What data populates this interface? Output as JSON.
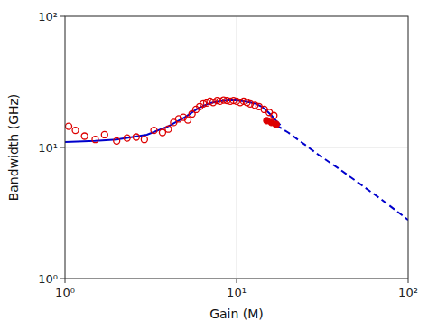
{
  "chart_data": {
    "type": "line",
    "log": true,
    "grid": true,
    "xlabel": "Gain (M)",
    "ylabel": "Bandwidth (GHz)",
    "xlim": [
      1,
      100
    ],
    "ylim": [
      1,
      100
    ],
    "xticks": [
      {
        "value": 1,
        "label": "10⁰"
      },
      {
        "value": 10,
        "label": "10¹"
      },
      {
        "value": 100,
        "label": "10²"
      }
    ],
    "yticks": [
      {
        "value": 1,
        "label": "10⁰"
      },
      {
        "value": 10,
        "label": "10¹"
      },
      {
        "value": 100,
        "label": "10²"
      }
    ],
    "series": [
      {
        "type": "line",
        "line_style": "solid",
        "color": "#0000cc",
        "x": [
          1.0,
          1.5,
          2.0,
          3.0,
          4.0,
          5.0,
          6.0,
          7.0,
          8.0,
          9.0,
          10.0,
          11.0,
          12.0,
          13.0,
          14.0,
          15.0,
          16.0,
          17.0,
          18.0
        ],
        "values": [
          11.0,
          11.2,
          11.5,
          12.5,
          14.5,
          17.0,
          20.0,
          21.8,
          22.5,
          22.8,
          22.8,
          22.5,
          22.0,
          21.5,
          20.5,
          19.0,
          17.5,
          16.0,
          14.8
        ]
      },
      {
        "type": "line",
        "line_style": "dashed",
        "color": "#0000cc",
        "x": [
          17.0,
          20.0,
          25.0,
          30.0,
          40.0,
          50.0,
          70.0,
          100.0
        ],
        "values": [
          14.8,
          13.0,
          10.5,
          8.8,
          6.8,
          5.5,
          4.0,
          2.8
        ]
      },
      {
        "type": "scatter",
        "marker": "open-circle",
        "color": "#dd0000",
        "x": [
          1.05,
          1.15,
          1.3,
          1.5,
          1.7,
          2.0,
          2.3,
          2.6,
          2.9,
          3.3,
          3.7,
          4.0,
          4.3,
          4.6,
          4.9,
          5.2,
          5.5,
          5.8,
          6.1,
          6.4,
          6.7,
          7.0,
          7.3,
          7.7,
          8.0,
          8.4,
          8.8,
          9.2,
          9.6,
          10.0,
          10.5,
          11.0,
          11.5,
          12.0,
          12.8,
          13.5,
          14.5,
          15.5,
          16.5
        ],
        "values": [
          14.5,
          13.5,
          12.2,
          11.5,
          12.5,
          11.2,
          11.8,
          12.0,
          11.5,
          13.5,
          13.0,
          13.8,
          15.5,
          16.5,
          17.0,
          16.2,
          18.0,
          19.5,
          20.5,
          21.5,
          21.8,
          22.5,
          22.0,
          22.8,
          22.5,
          23.0,
          22.8,
          22.5,
          22.8,
          22.5,
          22.0,
          22.5,
          22.0,
          21.5,
          21.0,
          20.5,
          19.5,
          18.5,
          17.5
        ]
      },
      {
        "type": "scatter",
        "marker": "circle",
        "color": "#dd0000",
        "x": [
          15.0,
          16.0,
          17.0
        ],
        "values": [
          16.0,
          15.5,
          15.0
        ]
      }
    ]
  }
}
